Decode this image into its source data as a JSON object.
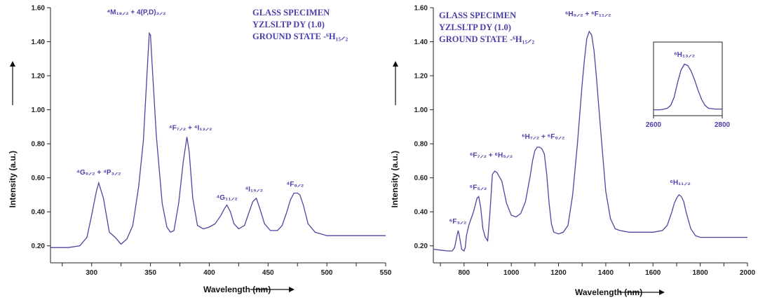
{
  "chart_data": [
    {
      "type": "line",
      "xlabel": "Wavelength (nm)",
      "ylabel": "Intensity (a.u.)",
      "xlim": [
        265,
        550
      ],
      "ylim": [
        0.1,
        1.6
      ],
      "xticks": [
        300,
        350,
        400,
        450,
        500,
        550
      ],
      "yticks": [
        0.2,
        0.4,
        0.6,
        0.8,
        1.0,
        1.2,
        1.4,
        1.6
      ],
      "xtick_labels": [
        "300",
        "350",
        "400",
        "450",
        "500",
        "550"
      ],
      "ytick_labels": [
        "0.20",
        "0.40",
        "0.60",
        "0.80",
        "1.00",
        "1.20",
        "1.40",
        "1.60"
      ],
      "info_lines": [
        "GLASS SPECIMEN",
        "YZLSLTP DY (1.0)",
        "GROUND STATE -⁶H₁₅⸝₂"
      ],
      "annotations": [
        {
          "text": "⁴G₉⸝₂ + ⁴P₃⸝₂",
          "x": 306,
          "y": 0.62
        },
        {
          "text": "⁴M₁₉⸝₂ + 4(P,D)₃⸝₂",
          "x": 338,
          "y": 1.56
        },
        {
          "text": "⁴F₇⸝₂ + ⁴I₁₃⸝₂",
          "x": 384,
          "y": 0.88
        },
        {
          "text": "⁴G₁₁⸝₂",
          "x": 415,
          "y": 0.47
        },
        {
          "text": "⁴I₁₅⸝₂",
          "x": 438,
          "y": 0.52
        },
        {
          "text": "⁴F₉⸝₂",
          "x": 473,
          "y": 0.55
        }
      ],
      "series": [
        {
          "x": [
            265,
            280,
            290,
            296,
            300,
            304,
            306,
            310,
            315,
            320,
            325,
            330,
            335,
            340,
            344,
            347,
            349,
            350,
            352,
            355,
            360,
            364,
            367,
            370,
            374,
            378,
            381,
            383,
            386,
            390,
            395,
            400,
            405,
            410,
            413,
            415,
            418,
            421,
            425,
            430,
            434,
            437,
            440,
            443,
            447,
            452,
            458,
            462,
            466,
            469,
            472,
            475,
            477,
            480,
            484,
            490,
            500,
            510,
            520,
            530,
            540,
            550
          ],
          "y": [
            0.19,
            0.19,
            0.2,
            0.25,
            0.38,
            0.52,
            0.57,
            0.48,
            0.28,
            0.25,
            0.21,
            0.24,
            0.32,
            0.55,
            0.82,
            1.2,
            1.45,
            1.44,
            1.2,
            0.85,
            0.45,
            0.31,
            0.28,
            0.29,
            0.45,
            0.7,
            0.84,
            0.75,
            0.48,
            0.32,
            0.3,
            0.31,
            0.33,
            0.38,
            0.42,
            0.44,
            0.4,
            0.33,
            0.3,
            0.32,
            0.4,
            0.46,
            0.48,
            0.42,
            0.33,
            0.29,
            0.29,
            0.32,
            0.4,
            0.47,
            0.51,
            0.51,
            0.5,
            0.44,
            0.33,
            0.28,
            0.26,
            0.26,
            0.26,
            0.26,
            0.26,
            0.26
          ]
        }
      ]
    },
    {
      "type": "line",
      "xlabel": "Wavelength (nm)",
      "ylabel": "Intensity (a.u.)",
      "xlim": [
        670,
        2000
      ],
      "ylim": [
        0.1,
        1.6
      ],
      "xticks": [
        800,
        1000,
        1200,
        1400,
        1600,
        1800,
        2000
      ],
      "yticks": [
        0.2,
        0.4,
        0.6,
        0.8,
        1.0,
        1.2,
        1.4,
        1.6
      ],
      "xtick_labels": [
        "800",
        "1000",
        "1200",
        "1400",
        "1600",
        "1800",
        "2000"
      ],
      "ytick_labels": [
        "0.20",
        "0.40",
        "0.60",
        "0.80",
        "1.00",
        "1.20",
        "1.40",
        "1.60"
      ],
      "info_lines": [
        "GLASS SPECIMEN",
        "YZLSLTP DY (1.0)",
        "GROUND STATE -⁶H₁₅⸝₂"
      ],
      "annotations": [
        {
          "text": "⁶F₃⸝₂",
          "x": 774,
          "y": 0.33
        },
        {
          "text": "⁶F₅⸝₂",
          "x": 860,
          "y": 0.53
        },
        {
          "text": "⁶F₇⸝₂ + ⁶H₅⸝₂",
          "x": 915,
          "y": 0.72
        },
        {
          "text": "⁶H₇⸝₂ + ⁶F₉⸝₂",
          "x": 1135,
          "y": 0.83
        },
        {
          "text": "⁶H₉⸝₂ + ⁶F₁₁⸝₂",
          "x": 1325,
          "y": 1.55
        },
        {
          "text": "⁶H₁₁⸝₂",
          "x": 1715,
          "y": 0.56
        }
      ],
      "series": [
        {
          "x": [
            670,
            700,
            730,
            750,
            760,
            770,
            775,
            780,
            790,
            800,
            805,
            810,
            820,
            840,
            855,
            862,
            870,
            880,
            890,
            900,
            910,
            920,
            930,
            940,
            960,
            980,
            1000,
            1020,
            1040,
            1060,
            1080,
            1090,
            1100,
            1110,
            1120,
            1130,
            1140,
            1150,
            1160,
            1170,
            1180,
            1200,
            1220,
            1240,
            1260,
            1280,
            1300,
            1310,
            1320,
            1330,
            1340,
            1350,
            1360,
            1380,
            1400,
            1420,
            1440,
            1460,
            1500,
            1550,
            1600,
            1640,
            1660,
            1680,
            1690,
            1700,
            1710,
            1720,
            1730,
            1740,
            1760,
            1780,
            1800,
            1850,
            1900,
            1950,
            2000
          ],
          "y": [
            0.18,
            0.175,
            0.17,
            0.17,
            0.19,
            0.26,
            0.29,
            0.26,
            0.18,
            0.17,
            0.19,
            0.26,
            0.32,
            0.4,
            0.48,
            0.49,
            0.43,
            0.3,
            0.25,
            0.23,
            0.4,
            0.62,
            0.64,
            0.63,
            0.58,
            0.45,
            0.38,
            0.37,
            0.39,
            0.46,
            0.61,
            0.7,
            0.76,
            0.78,
            0.78,
            0.77,
            0.74,
            0.62,
            0.45,
            0.33,
            0.28,
            0.27,
            0.28,
            0.32,
            0.5,
            0.8,
            1.15,
            1.3,
            1.42,
            1.46,
            1.44,
            1.35,
            1.2,
            0.85,
            0.52,
            0.36,
            0.3,
            0.29,
            0.28,
            0.28,
            0.28,
            0.29,
            0.32,
            0.4,
            0.45,
            0.48,
            0.5,
            0.49,
            0.46,
            0.4,
            0.3,
            0.26,
            0.25,
            0.25,
            0.25,
            0.25,
            0.25
          ]
        }
      ]
    }
  ],
  "inset": {
    "label": "⁶H₁₃⸝₂",
    "xlim": [
      2600,
      2800
    ],
    "xticks": [
      2600,
      2800
    ],
    "xtick_labels": [
      "2600",
      "2800"
    ],
    "x": [
      2600,
      2610,
      2620,
      2630,
      2640,
      2650,
      2660,
      2670,
      2680,
      2690,
      2700,
      2710,
      2720,
      2730,
      2740,
      2750,
      2760,
      2780,
      2800
    ],
    "y": [
      0.08,
      0.08,
      0.08,
      0.09,
      0.1,
      0.14,
      0.25,
      0.45,
      0.62,
      0.7,
      0.68,
      0.6,
      0.48,
      0.34,
      0.22,
      0.14,
      0.1,
      0.09,
      0.09
    ]
  }
}
